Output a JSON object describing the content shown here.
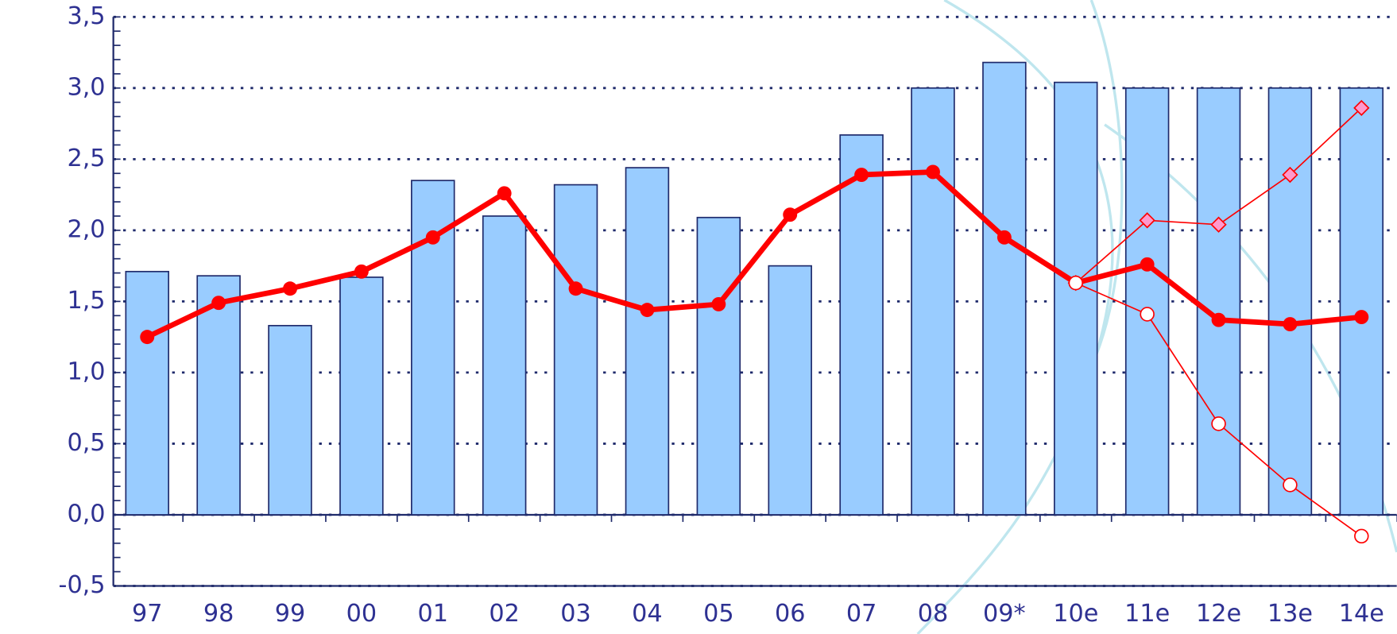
{
  "chart_data": {
    "type": "bar-line",
    "categories": [
      "97",
      "98",
      "99",
      "00",
      "01",
      "02",
      "03",
      "04",
      "05",
      "06",
      "07",
      "08",
      "09*",
      "10e",
      "11e",
      "12e",
      "13e",
      "14e"
    ],
    "series": [
      {
        "type": "bar",
        "color": "#99ccff",
        "values": [
          1.71,
          1.68,
          1.33,
          1.67,
          2.35,
          2.1,
          2.32,
          2.44,
          2.09,
          1.75,
          2.67,
          3.0,
          3.18,
          3.04,
          3.0,
          3.0,
          3.0,
          3.0
        ]
      },
      {
        "type": "line",
        "color": "#ff0000",
        "marker": "circle",
        "values": [
          1.25,
          1.49,
          1.59,
          1.71,
          1.95,
          2.26,
          1.59,
          1.44,
          1.48,
          2.11,
          2.39,
          2.41,
          1.95,
          1.63,
          1.76,
          1.37,
          1.34,
          1.39
        ]
      },
      {
        "type": "line",
        "color": "#ff0000",
        "marker": "diamond",
        "values": [
          null,
          null,
          null,
          null,
          null,
          null,
          null,
          null,
          null,
          null,
          null,
          null,
          null,
          1.63,
          2.07,
          2.04,
          2.39,
          2.86
        ]
      },
      {
        "type": "line",
        "color": "#ff0000",
        "marker": "open-circle",
        "values": [
          null,
          null,
          null,
          null,
          null,
          null,
          null,
          null,
          null,
          null,
          null,
          null,
          null,
          1.63,
          1.41,
          0.64,
          0.21,
          -0.15
        ]
      }
    ],
    "ylim": [
      -0.5,
      3.5
    ],
    "yticks": [
      {
        "value": -0.5,
        "label": "-0,5"
      },
      {
        "value": 0,
        "label": "0,0"
      },
      {
        "value": 0.5,
        "label": "0,5"
      },
      {
        "value": 1,
        "label": "1,0"
      },
      {
        "value": 1.5,
        "label": "1,5"
      },
      {
        "value": 2,
        "label": "2,0"
      },
      {
        "value": 2.5,
        "label": "2,5"
      },
      {
        "value": 3,
        "label": "3,0"
      },
      {
        "value": 3.5,
        "label": "3,5"
      }
    ],
    "grid": true
  }
}
